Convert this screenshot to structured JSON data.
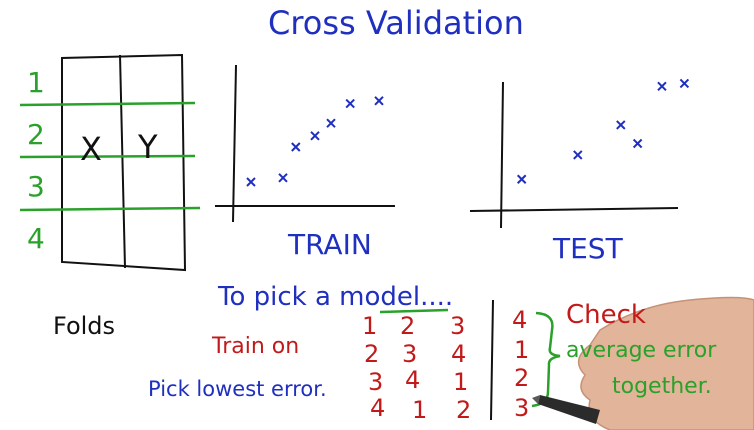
{
  "title": "Cross Validation",
  "fold_numbers": [
    "1",
    "2",
    "3",
    "4"
  ],
  "columns": {
    "x": "X",
    "y": "Y"
  },
  "folds_label": "Folds",
  "plots": {
    "train": {
      "label": "TRAIN",
      "points": [
        [
          0.1,
          0.2
        ],
        [
          0.3,
          0.23
        ],
        [
          0.38,
          0.45
        ],
        [
          0.5,
          0.53
        ],
        [
          0.6,
          0.62
        ],
        [
          0.72,
          0.76
        ],
        [
          0.9,
          0.78
        ]
      ]
    },
    "test": {
      "label": "TEST",
      "points": [
        [
          0.1,
          0.25
        ],
        [
          0.4,
          0.42
        ],
        [
          0.63,
          0.63
        ],
        [
          0.72,
          0.5
        ],
        [
          0.85,
          0.9
        ],
        [
          0.97,
          0.92
        ]
      ]
    }
  },
  "notes": {
    "pick_model": "To pick a model....",
    "train_on": "Train on",
    "pick_lowest": "Pick lowest error.",
    "check": "Check",
    "average_error": "average error",
    "together": "together."
  },
  "table": {
    "train_rows": [
      [
        "1",
        "2",
        "3"
      ],
      [
        "2",
        "3",
        "4"
      ],
      [
        "3",
        "4",
        "1"
      ],
      [
        "4",
        "1",
        "2"
      ]
    ],
    "test_col": [
      "4",
      "1",
      "2",
      "3"
    ]
  },
  "colors": {
    "blue": "#1f2fbf",
    "red": "#c21a1a",
    "green": "#2aa12a",
    "black": "#111111"
  }
}
